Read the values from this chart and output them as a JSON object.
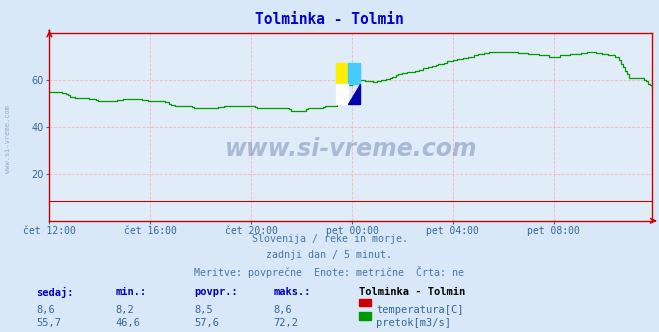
{
  "title": "Tolminka - Tolmin",
  "title_color": "#0000cc",
  "bg_color": "#d8e8f8",
  "plot_bg_color": "#e0ecf8",
  "grid_color": "#ffaaaa",
  "axis_color": "#cc0000",
  "line_color_flow": "#009900",
  "line_color_temp": "#cc0000",
  "watermark_text": "www.si-vreme.com",
  "watermark_color": "#1a3a80",
  "subtitle_lines": [
    "Slovenija / reke in morje.",
    "zadnji dan / 5 minut.",
    "Meritve: povprečne  Enote: metrične  Črta: ne"
  ],
  "subtitle_color": "#4477aa",
  "table_headers": [
    "sedaj:",
    "min.:",
    "povpr.:",
    "maks.:"
  ],
  "table_header_color": "#0000bb",
  "table_row1_values": [
    "8,6",
    "8,2",
    "8,5",
    "8,6"
  ],
  "table_row2_values": [
    "55,7",
    "46,6",
    "57,6",
    "72,2"
  ],
  "table_value_color": "#336699",
  "legend_title": "Tolminka - Tolmin",
  "legend_title_color": "#000000",
  "legend_items": [
    "temperatura[C]",
    "pretok[m3/s]"
  ],
  "legend_colors": [
    "#cc0000",
    "#009900"
  ],
  "legend_text_color": "#336699",
  "xticklabels": [
    "čet 12:00",
    "čet 16:00",
    "čet 20:00",
    "pet 00:00",
    "pet 04:00",
    "pet 08:00"
  ],
  "xtick_color": "#336699",
  "ytick_color": "#336699",
  "ylim": [
    0,
    80
  ],
  "yticks": [
    20,
    40,
    60
  ],
  "n_points": 288,
  "flow_keypoints_x": [
    0,
    5,
    12,
    18,
    24,
    30,
    36,
    42,
    48,
    54,
    60,
    66,
    70,
    78,
    84,
    90,
    96,
    100,
    104,
    108,
    112,
    116,
    120,
    124,
    128,
    132,
    136,
    140,
    148,
    155,
    162,
    168,
    175,
    182,
    190,
    200,
    210,
    220,
    230,
    240,
    250,
    258,
    264,
    270,
    276,
    282,
    287
  ],
  "flow_keypoints_y": [
    55,
    55,
    52.5,
    52.5,
    51,
    51,
    52,
    52,
    51,
    51,
    49,
    49,
    48,
    48,
    49,
    49,
    49,
    48,
    48,
    48,
    48,
    47,
    47,
    48,
    48,
    49,
    49,
    57,
    60,
    59,
    61,
    63,
    64,
    66,
    68,
    70,
    72,
    72,
    71,
    70,
    71,
    72,
    71,
    70,
    61,
    61,
    57
  ]
}
